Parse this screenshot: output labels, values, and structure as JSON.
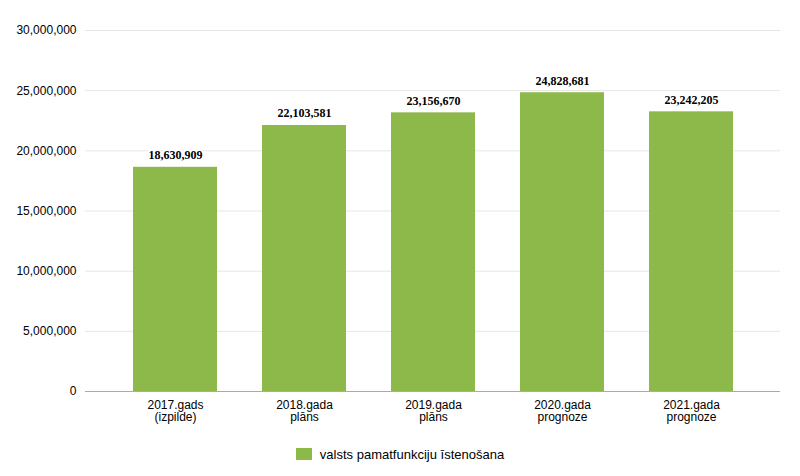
{
  "chart_data": {
    "type": "bar",
    "categories": [
      "2017.gads\n(izpilde)",
      "2018.gada\nplāns",
      "2019.gada\nplāns",
      "2020.gada\nprognoze",
      "2021.gada\nprognoze"
    ],
    "series": [
      {
        "name": "valsts pamatfunkciju īstenošana",
        "color": "#8db84a",
        "values": [
          18630909,
          22103581,
          23156670,
          24828681,
          23242205
        ],
        "value_labels": [
          "18,630,909",
          "22,103,581",
          "23,156,670",
          "24,828,681",
          "23,242,205"
        ]
      }
    ],
    "ylim": [
      0,
      30000000
    ],
    "yticks": [
      0,
      {
        "value": 5000000,
        "label": "5,000,000"
      },
      {
        "value": 10000000,
        "label": "10,000,000"
      },
      {
        "value": 15000000,
        "label": "15,000,000"
      },
      {
        "value": 20000000,
        "label": "20,000,000"
      },
      {
        "value": 25000000,
        "label": "25,000,000"
      },
      {
        "value": 30000000,
        "label": "30,000,000"
      }
    ],
    "grid": true,
    "data_labels": true,
    "legend": "bottom"
  }
}
